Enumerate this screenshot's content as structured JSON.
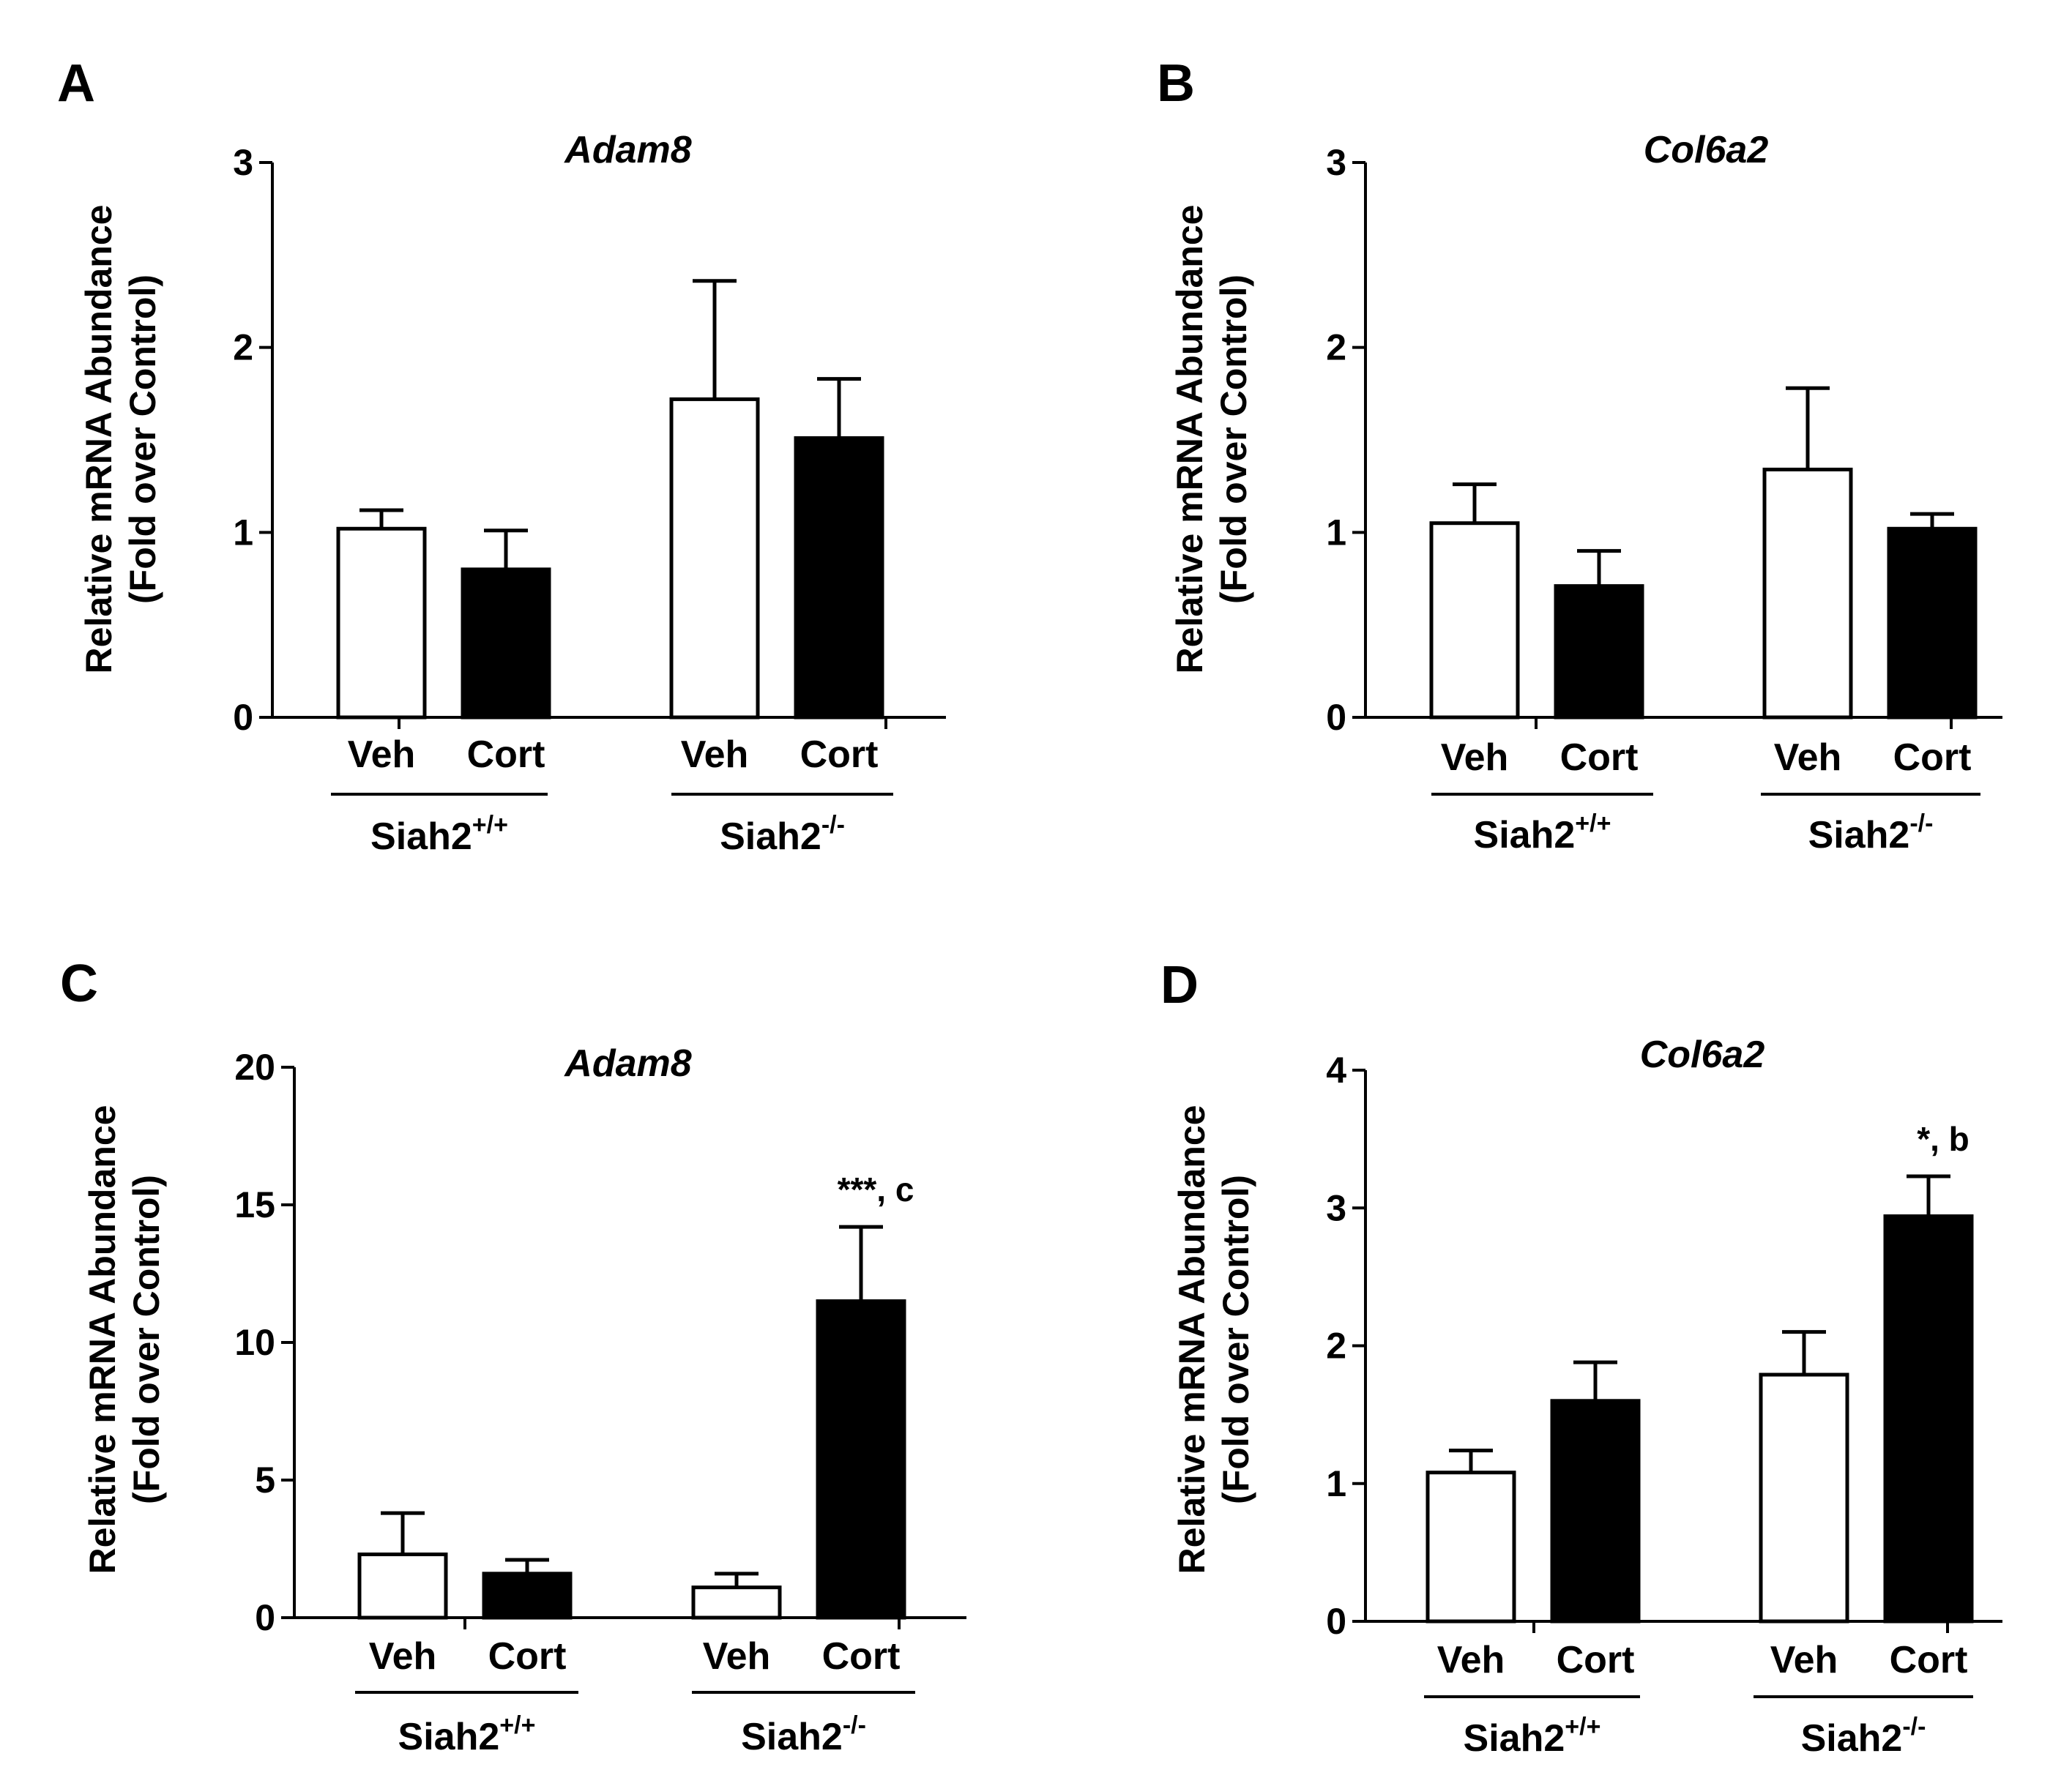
{
  "chart_data": [
    {
      "panel": "A",
      "type": "bar",
      "title": "Adam8",
      "ylabel_line1": "Relative mRNA Abundance",
      "ylabel_line2": "(Fold over Control)",
      "ylim": [
        0,
        3
      ],
      "yticks": [
        "0",
        "1",
        "2",
        "3"
      ],
      "yticks_values": [
        0,
        1,
        2,
        3
      ],
      "categories": [
        "Veh",
        "Cort",
        "Veh",
        "Cort"
      ],
      "groups": [
        {
          "base": "Siah2",
          "sup": "+/+"
        },
        {
          "base": "Siah2",
          "sup": "-/-"
        }
      ],
      "values": [
        1.02,
        0.8,
        1.72,
        1.51
      ],
      "errors": [
        0.1,
        0.21,
        0.64,
        0.32
      ],
      "fills": [
        "#ffffff",
        "#000000",
        "#ffffff",
        "#000000"
      ],
      "annotations": [
        "",
        "",
        "",
        ""
      ]
    },
    {
      "panel": "B",
      "type": "bar",
      "title": "Col6a2",
      "ylabel_line1": "Relative mRNA Abundance",
      "ylabel_line2": "(Fold over Control)",
      "ylim": [
        0,
        3
      ],
      "yticks": [
        "0",
        "1",
        "2",
        "3"
      ],
      "yticks_values": [
        0,
        1,
        2,
        3
      ],
      "categories": [
        "Veh",
        "Cort",
        "Veh",
        "Cort"
      ],
      "groups": [
        {
          "base": "Siah2",
          "sup": "+/+"
        },
        {
          "base": "Siah2",
          "sup": "-/-"
        }
      ],
      "values": [
        1.05,
        0.71,
        1.34,
        1.02
      ],
      "errors": [
        0.21,
        0.19,
        0.44,
        0.08
      ],
      "fills": [
        "#ffffff",
        "#000000",
        "#ffffff",
        "#000000"
      ],
      "annotations": [
        "",
        "",
        "",
        ""
      ]
    },
    {
      "panel": "C",
      "type": "bar",
      "title": "Adam8",
      "ylabel_line1": "Relative mRNA Abundance",
      "ylabel_line2": "(Fold over Control)",
      "ylim": [
        0,
        20
      ],
      "yticks": [
        "0",
        "5",
        "10",
        "15",
        "20"
      ],
      "yticks_values": [
        0,
        5,
        10,
        15,
        20
      ],
      "categories": [
        "Veh",
        "Cort",
        "Veh",
        "Cort"
      ],
      "groups": [
        {
          "base": "Siah2",
          "sup": "+/+"
        },
        {
          "base": "Siah2",
          "sup": "-/-"
        }
      ],
      "values": [
        2.3,
        1.6,
        1.1,
        11.5
      ],
      "errors": [
        1.5,
        0.5,
        0.5,
        2.7
      ],
      "fills": [
        "#ffffff",
        "#000000",
        "#ffffff",
        "#000000"
      ],
      "annotations": [
        "",
        "",
        "",
        "***, c"
      ]
    },
    {
      "panel": "D",
      "type": "bar",
      "title": "Col6a2",
      "ylabel_line1": "Relative mRNA Abundance",
      "ylabel_line2": "(Fold over Control)",
      "ylim": [
        0,
        4
      ],
      "yticks": [
        "0",
        "1",
        "2",
        "3",
        "4"
      ],
      "yticks_values": [
        0,
        1,
        2,
        3,
        4
      ],
      "categories": [
        "Veh",
        "Cort",
        "Veh",
        "Cort"
      ],
      "groups": [
        {
          "base": "Siah2",
          "sup": "+/+"
        },
        {
          "base": "Siah2",
          "sup": "-/-"
        }
      ],
      "values": [
        1.08,
        1.6,
        1.79,
        2.94
      ],
      "errors": [
        0.16,
        0.28,
        0.31,
        0.29
      ],
      "fills": [
        "#ffffff",
        "#000000",
        "#ffffff",
        "#000000"
      ],
      "annotations": [
        "",
        "",
        "",
        "*, b"
      ]
    }
  ]
}
